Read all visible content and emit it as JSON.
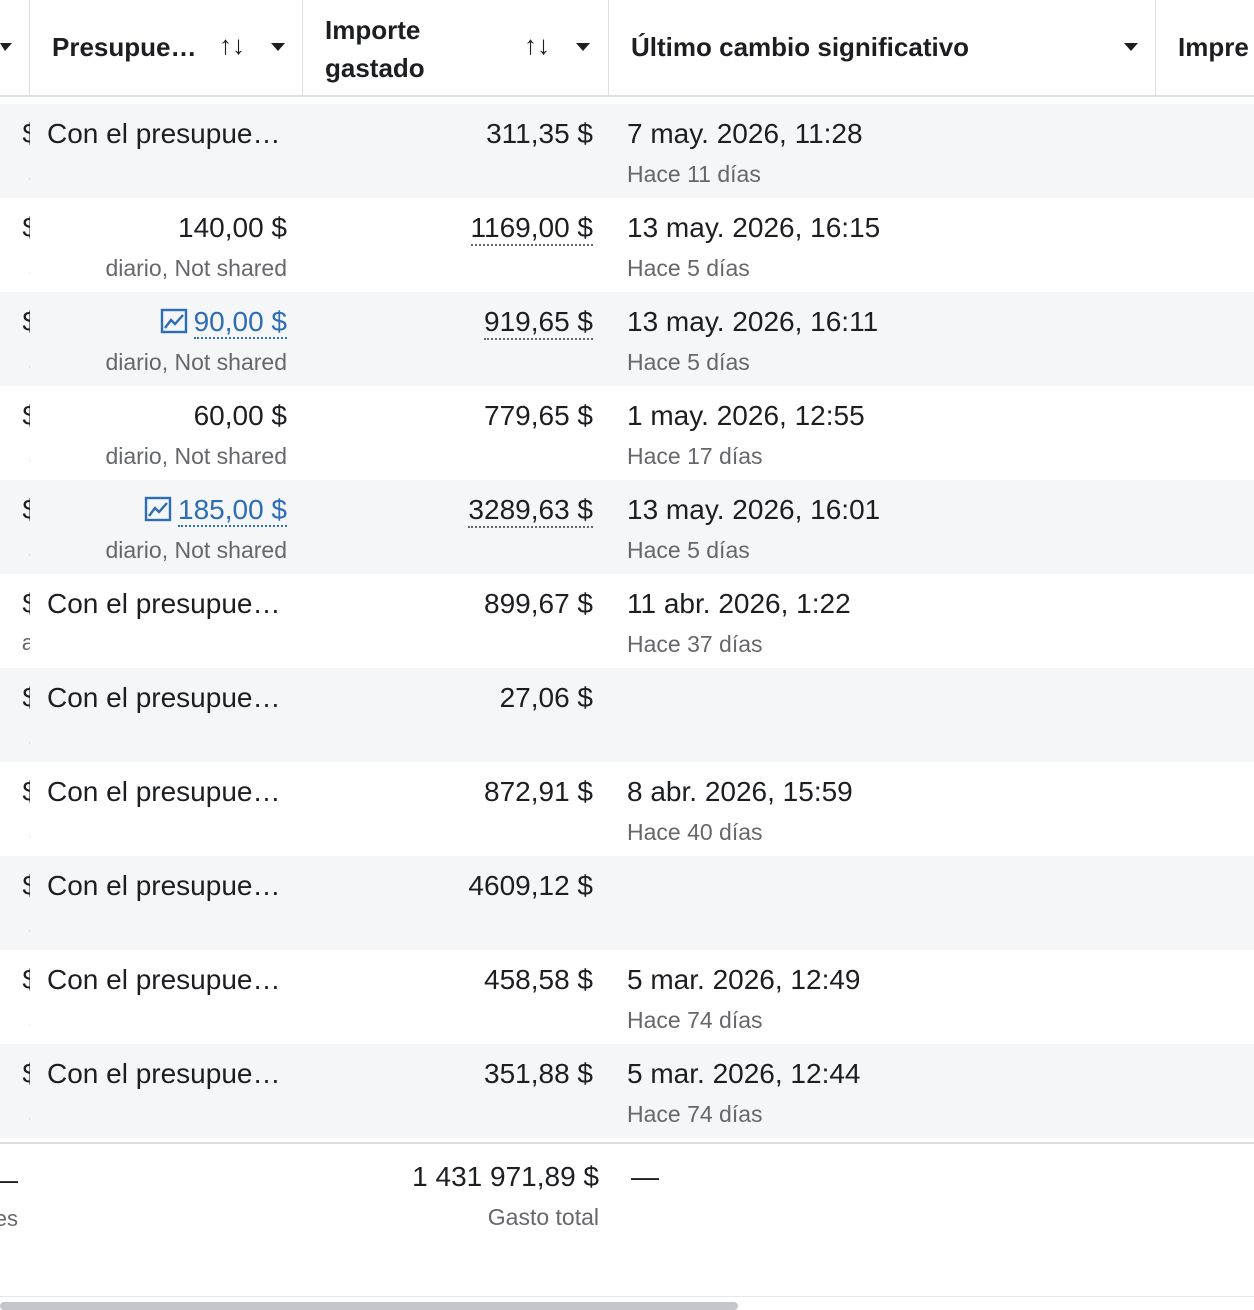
{
  "header": {
    "budget_label": "Presupue…",
    "spent_label_line1": "Importe",
    "spent_label_line2": "gastado",
    "change_label": "Último cambio significativo",
    "impressions_label": "Impre",
    "sort_glyph": "↑↓"
  },
  "rows": [
    {
      "left": "$",
      "left_sub": ".",
      "budget": "Con el presupue…",
      "budget_sub": "",
      "budget_link": false,
      "spent": "311,35 $",
      "spent_dotted": false,
      "change": "7 may. 2026, 11:28",
      "change_sub": "Hace 11 días"
    },
    {
      "left": "$",
      "left_sub": ".",
      "budget": "140,00 $",
      "budget_sub": "diario, Not shared",
      "budget_link": false,
      "spent": "1169,00 $",
      "spent_dotted": true,
      "change": "13 may. 2026, 16:15",
      "change_sub": "Hace 5 días"
    },
    {
      "left": "$",
      "left_sub": ".",
      "budget": "90,00 $",
      "budget_sub": "diario, Not shared",
      "budget_link": true,
      "spent": "919,65 $",
      "spent_dotted": true,
      "change": "13 may. 2026, 16:11",
      "change_sub": "Hace 5 días"
    },
    {
      "left": "$",
      "left_sub": ".",
      "budget": "60,00 $",
      "budget_sub": "diario, Not shared",
      "budget_link": false,
      "spent": "779,65 $",
      "spent_dotted": false,
      "change": "1 may. 2026, 12:55",
      "change_sub": "Hace 17 días"
    },
    {
      "left": "$",
      "left_sub": ".",
      "budget": "185,00 $",
      "budget_sub": "diario, Not shared",
      "budget_link": true,
      "spent": "3289,63 $",
      "spent_dotted": true,
      "change": "13 may. 2026, 16:01",
      "change_sub": "Hace 5 días"
    },
    {
      "left": "$",
      "left_sub": "a",
      "budget": "Con el presupue…",
      "budget_sub": "",
      "budget_link": false,
      "spent": "899,67 $",
      "spent_dotted": false,
      "change": "11 abr. 2026, 1:22",
      "change_sub": "Hace 37 días"
    },
    {
      "left": "$",
      "left_sub": ".",
      "budget": "Con el presupue…",
      "budget_sub": "",
      "budget_link": false,
      "spent": "27,06 $",
      "spent_dotted": false,
      "change": "",
      "change_sub": ""
    },
    {
      "left": "$",
      "left_sub": ".",
      "budget": "Con el presupue…",
      "budget_sub": "",
      "budget_link": false,
      "spent": "872,91 $",
      "spent_dotted": false,
      "change": "8 abr. 2026, 15:59",
      "change_sub": "Hace 40 días"
    },
    {
      "left": "$",
      "left_sub": ".",
      "budget": "Con el presupue…",
      "budget_sub": "",
      "budget_link": false,
      "spent": "4609,12 $",
      "spent_dotted": false,
      "change": "",
      "change_sub": ""
    },
    {
      "left": "$",
      "left_sub": ".",
      "budget": "Con el presupue…",
      "budget_sub": "",
      "budget_link": false,
      "spent": "458,58 $",
      "spent_dotted": false,
      "change": "5 mar. 2026, 12:49",
      "change_sub": "Hace 74 días"
    },
    {
      "left": "$",
      "left_sub": ".",
      "budget": "Con el presupue…",
      "budget_sub": "",
      "budget_link": false,
      "spent": "351,88 $",
      "spent_dotted": false,
      "change": "5 mar. 2026, 12:44",
      "change_sub": "Hace 74 días"
    }
  ],
  "footer": {
    "left": "—",
    "left_sub": "es",
    "total_spent": "1 431 971,89 $",
    "total_label": "Gasto total",
    "change": "—"
  },
  "icons": {
    "chart": "trend-chart-icon"
  }
}
